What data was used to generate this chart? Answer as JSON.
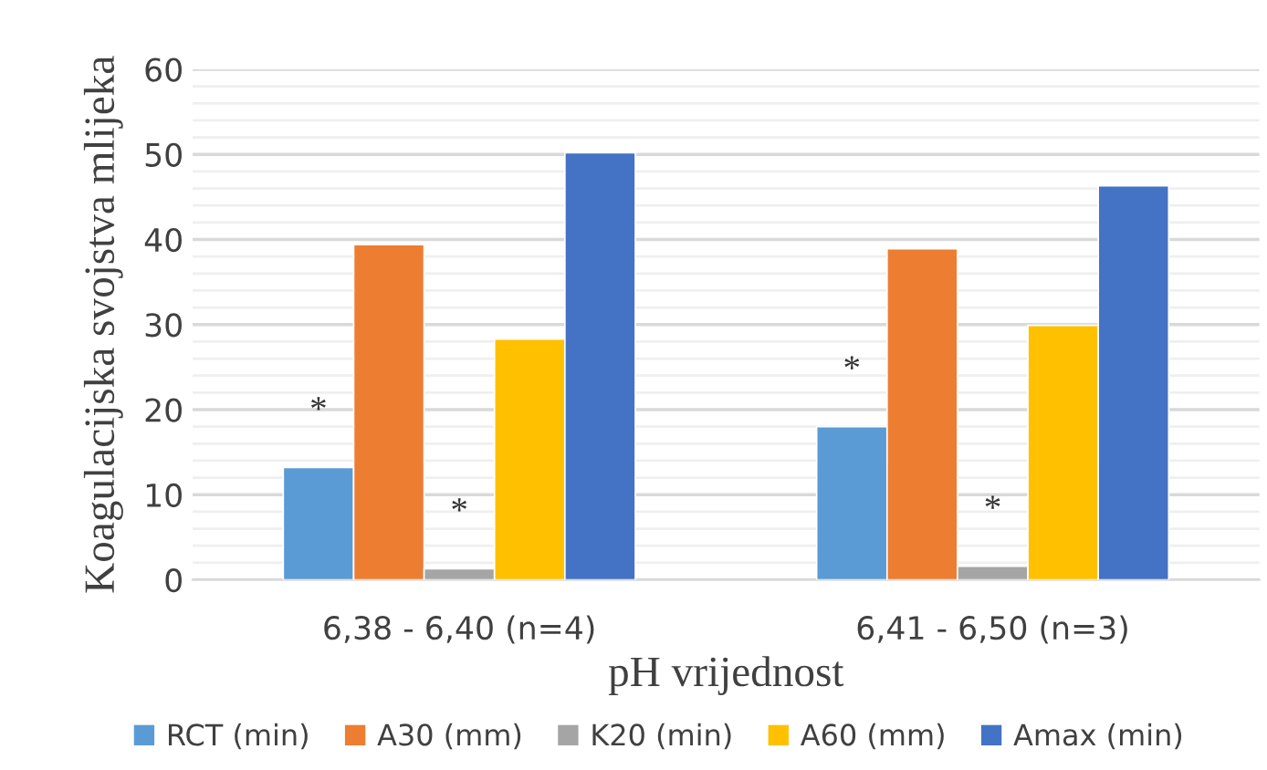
{
  "chart_data": {
    "type": "bar",
    "xlabel": "pH vrijednost",
    "ylabel": "Koagulacijska svojstva mlijeka",
    "categories": [
      "6,38 - 6,40 (n=4)",
      "6,41 - 6,50 (n=3)"
    ],
    "series": [
      {
        "name": "RCT (min)",
        "color": "#5b9bd5",
        "values": [
          13.2,
          18.0
        ],
        "value_labels": [
          "*",
          "*"
        ]
      },
      {
        "name": "A30 (mm)",
        "color": "#ed7d31",
        "values": [
          39.4,
          38.9
        ]
      },
      {
        "name": "K20 (min)",
        "color": "#a5a5a5",
        "values": [
          1.3,
          1.6
        ],
        "value_labels": [
          "*",
          "*"
        ]
      },
      {
        "name": "A60 (mm)",
        "color": "#ffc000",
        "values": [
          28.3,
          29.9
        ]
      },
      {
        "name": "Amax (min)",
        "color": "#4472c4",
        "values": [
          50.2,
          46.3
        ]
      }
    ],
    "ylim": [
      0,
      60
    ],
    "yticks": [
      0,
      {
        "value": 2,
        "label": null
      },
      {
        "value": 4,
        "label": null
      },
      {
        "value": 6,
        "label": null
      },
      {
        "value": 8,
        "label": null
      },
      10,
      {
        "value": 12,
        "label": null
      },
      {
        "value": 14,
        "label": null
      },
      {
        "value": 16,
        "label": null
      },
      {
        "value": 18,
        "label": null
      },
      20,
      {
        "value": 22,
        "label": null
      },
      {
        "value": 24,
        "label": null
      },
      {
        "value": 26,
        "label": null
      },
      {
        "value": 28,
        "label": null
      },
      30,
      {
        "value": 32,
        "label": null
      },
      {
        "value": 34,
        "label": null
      },
      {
        "value": 36,
        "label": null
      },
      {
        "value": 38,
        "label": null
      },
      40,
      {
        "value": 42,
        "label": null
      },
      {
        "value": 44,
        "label": null
      },
      {
        "value": 46,
        "label": null
      },
      {
        "value": 48,
        "label": null
      },
      50,
      {
        "value": 52,
        "label": null
      },
      {
        "value": 54,
        "label": null
      },
      {
        "value": 56,
        "label": null
      },
      {
        "value": 58,
        "label": null
      },
      60
    ],
    "grid": "y",
    "legend": "bottom"
  }
}
